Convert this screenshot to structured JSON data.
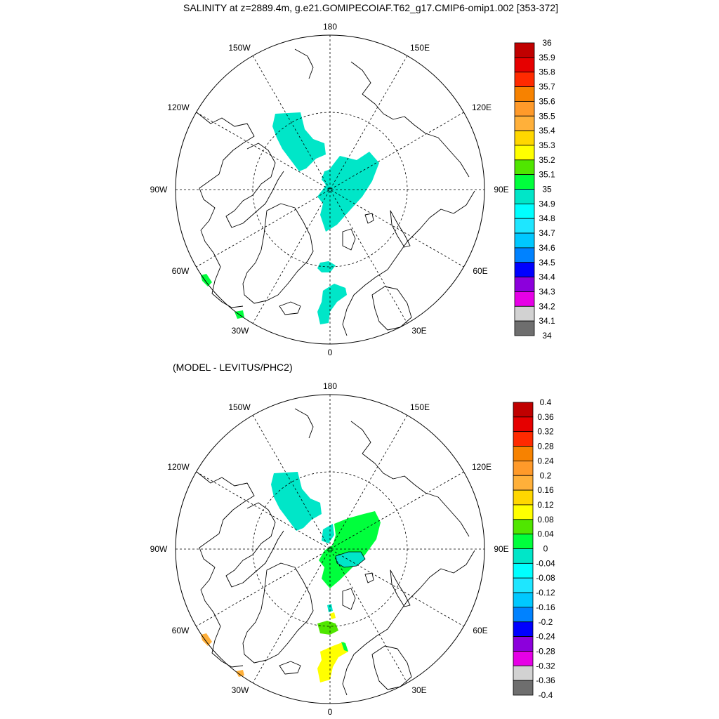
{
  "panels": [
    {
      "title": "SALINITY at z=2889.4m, g.e21.GOMIPECOIAF.T62_g17.CMIP6-omip1.002 [353-372]",
      "lon_labels": [
        "180",
        "150E",
        "120E",
        "90E",
        "60E",
        "30E",
        "0",
        "30W",
        "60W",
        "90W",
        "120W",
        "150W"
      ],
      "colorbar": {
        "labels": [
          "36",
          "35.9",
          "35.8",
          "35.7",
          "35.6",
          "35.5",
          "35.4",
          "35.3",
          "35.2",
          "35.1",
          "35",
          "34.9",
          "34.8",
          "34.7",
          "34.6",
          "34.5",
          "34.4",
          "34.3",
          "34.2",
          "34.1",
          "34"
        ],
        "colors": [
          "#c00000",
          "#e60000",
          "#ff2a00",
          "#f78200",
          "#ff9a2a",
          "#ffb03a",
          "#ffd700",
          "#ffff00",
          "#50e600",
          "#00ff3c",
          "#00e6c8",
          "#00ffff",
          "#1ee6ff",
          "#00c8ff",
          "#0082ff",
          "#0000ff",
          "#8c00dc",
          "#e600e6",
          "#d2d2d2",
          "#6e6e6e"
        ]
      }
    },
    {
      "title": "(MODEL - LEVITUS/PHC2)",
      "lon_labels": [
        "180",
        "150E",
        "120E",
        "90E",
        "60E",
        "30E",
        "0",
        "30W",
        "60W",
        "90W",
        "120W",
        "150W"
      ],
      "colorbar": {
        "labels": [
          "0.4",
          "0.36",
          "0.32",
          "0.28",
          "0.24",
          "0.2",
          "0.16",
          "0.12",
          "0.08",
          "0.04",
          "0",
          "-0.04",
          "-0.08",
          "-0.12",
          "-0.16",
          "-0.2",
          "-0.24",
          "-0.28",
          "-0.32",
          "-0.36",
          "-0.4"
        ],
        "colors": [
          "#c00000",
          "#e60000",
          "#ff2a00",
          "#f78200",
          "#ff9a2a",
          "#ffb03a",
          "#ffd700",
          "#ffff00",
          "#50e600",
          "#00ff3c",
          "#00e6c8",
          "#00ffff",
          "#1ee6ff",
          "#00c8ff",
          "#0082ff",
          "#0000ff",
          "#8c00dc",
          "#e600e6",
          "#d2d2d2",
          "#6e6e6e"
        ]
      }
    }
  ]
}
